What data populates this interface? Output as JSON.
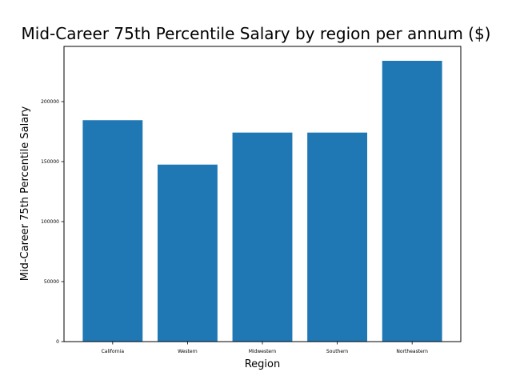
{
  "chart_data": {
    "type": "bar",
    "title": "Mid-Career 75th Percentile Salary by region per annum ($)",
    "xlabel": "Region",
    "ylabel": "Mid-Career 75th Percentile Salary",
    "categories": [
      "California",
      "Western",
      "Midwestern",
      "Southern",
      "Northeastern"
    ],
    "values": [
      184500,
      147500,
      174200,
      174200,
      234000
    ],
    "ylim": [
      0,
      246000
    ],
    "yticks": [
      0,
      50000,
      100000,
      150000,
      200000
    ],
    "ytick_labels": [
      "0",
      "50000",
      "100000",
      "150000",
      "200000"
    ],
    "bar_color": "#1f77b4",
    "grid": false,
    "legend": false
  }
}
